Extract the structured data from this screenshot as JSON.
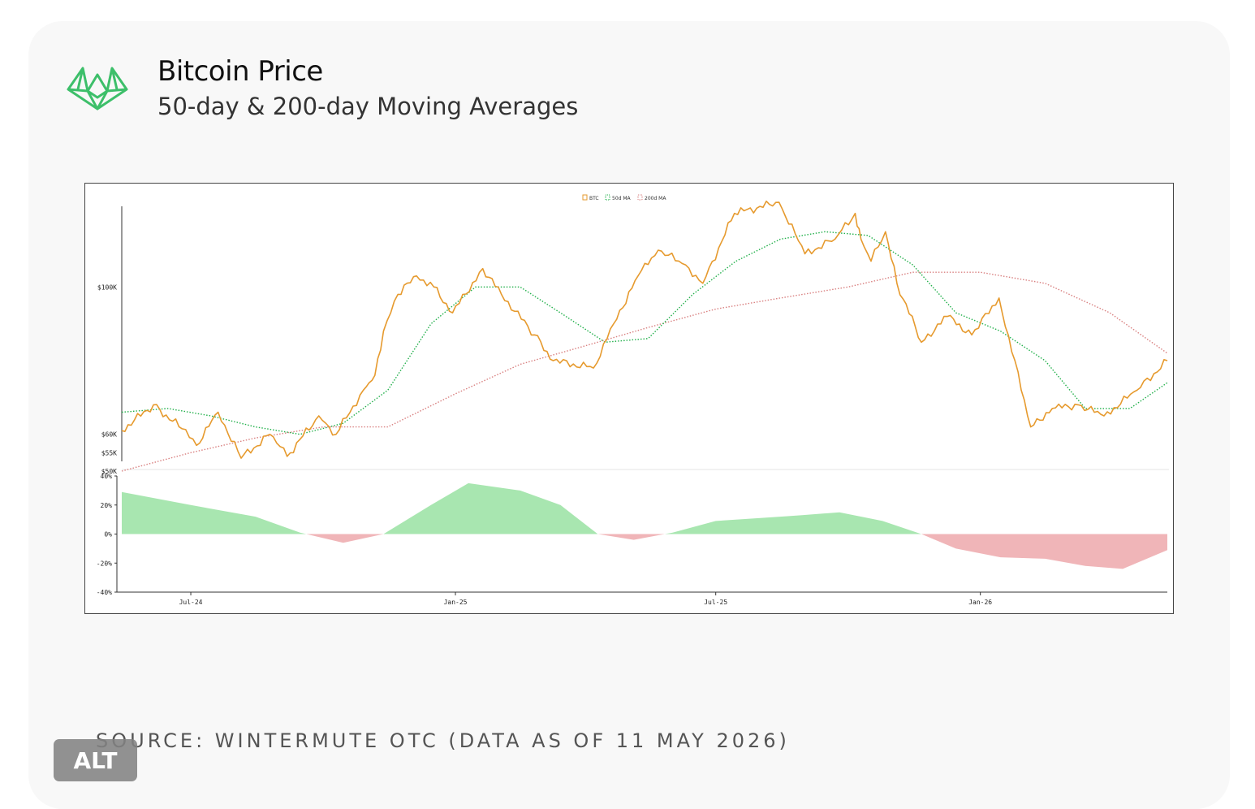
{
  "header": {
    "title": "Bitcoin Price",
    "subtitle": "50-day & 200-day Moving Averages",
    "logo_icon": "wintermute-logo-icon"
  },
  "footer": {
    "source": "SOURCE: WINTERMUTE OTC (DATA AS OF 11 MAY 2026)",
    "alt_label": "ALT"
  },
  "colors": {
    "btc": "#e69a2e",
    "ma50": "#22b04b",
    "ma200": "#d98080",
    "positive_fill": "#a8e6b0",
    "negative_fill": "#f0b5b8",
    "logo": "#3dbf6a"
  },
  "chart_data": [
    {
      "type": "line",
      "legend": [
        "BTC",
        "50d MA",
        "200d MA"
      ],
      "legend_position": "top-center",
      "x_ticks": [
        "Jul-24",
        "Jan-25",
        "Jul-25",
        "Jan-26"
      ],
      "y_ticks": [
        {
          "label": "$100K",
          "value": 100000
        },
        {
          "label": "$60K",
          "value": 60000
        },
        {
          "label": "$55K",
          "value": 55000
        },
        {
          "label": "$50K",
          "value": 50000
        }
      ],
      "ylim": [
        50000,
        125000
      ],
      "x_range": [
        "2024-05-14",
        "2026-05-11"
      ],
      "grid": false,
      "series": [
        {
          "name": "BTC",
          "x": [
            "2024-05-14",
            "2024-06-05",
            "2024-06-25",
            "2024-07-05",
            "2024-07-20",
            "2024-08-05",
            "2024-08-25",
            "2024-09-06",
            "2024-09-28",
            "2024-10-10",
            "2024-10-29",
            "2024-11-06",
            "2024-11-12",
            "2024-11-22",
            "2024-12-05",
            "2024-12-17",
            "2024-12-30",
            "2025-01-20",
            "2025-02-02",
            "2025-02-25",
            "2025-03-10",
            "2025-04-07",
            "2025-04-21",
            "2025-05-08",
            "2025-05-22",
            "2025-06-10",
            "2025-06-22",
            "2025-07-14",
            "2025-08-14",
            "2025-09-01",
            "2025-09-22",
            "2025-10-06",
            "2025-10-10",
            "2025-10-17",
            "2025-10-27",
            "2025-11-04",
            "2025-11-21",
            "2025-12-09",
            "2025-12-26",
            "2026-01-14",
            "2026-02-05",
            "2026-02-20",
            "2026-03-10",
            "2026-03-28",
            "2026-04-20",
            "2026-05-11"
          ],
          "values": [
            61000,
            68000,
            61500,
            57000,
            66000,
            53500,
            60000,
            54000,
            65000,
            60000,
            72000,
            76000,
            88000,
            98000,
            103000,
            100000,
            93000,
            105000,
            98000,
            87000,
            80000,
            78000,
            90000,
            103000,
            110000,
            106000,
            101000,
            120000,
            123000,
            109000,
            113000,
            120000,
            113000,
            107000,
            115000,
            101000,
            85000,
            92000,
            87000,
            97000,
            62000,
            67000,
            68000,
            65000,
            72000,
            80000
          ]
        },
        {
          "name": "50d MA",
          "x": [
            "2024-05-14",
            "2024-06-15",
            "2024-07-15",
            "2024-08-15",
            "2024-09-15",
            "2024-10-15",
            "2024-11-15",
            "2024-12-15",
            "2025-01-15",
            "2025-02-15",
            "2025-03-15",
            "2025-04-15",
            "2025-05-15",
            "2025-06-15",
            "2025-07-15",
            "2025-08-15",
            "2025-09-15",
            "2025-10-15",
            "2025-11-15",
            "2025-12-15",
            "2026-01-15",
            "2026-02-15",
            "2026-03-15",
            "2026-04-15",
            "2026-05-11"
          ],
          "values": [
            66000,
            67000,
            65000,
            62000,
            60000,
            63000,
            72000,
            90000,
            100000,
            100000,
            93000,
            85000,
            86000,
            98000,
            107000,
            113000,
            115000,
            114000,
            106000,
            93000,
            88000,
            80000,
            67000,
            67000,
            74000
          ]
        },
        {
          "name": "200d MA",
          "x": [
            "2024-05-14",
            "2024-07-01",
            "2024-08-15",
            "2024-10-01",
            "2024-11-15",
            "2025-01-01",
            "2025-02-15",
            "2025-04-01",
            "2025-05-15",
            "2025-07-01",
            "2025-08-15",
            "2025-10-01",
            "2025-11-15",
            "2026-01-01",
            "2026-02-15",
            "2026-04-01",
            "2026-05-11"
          ],
          "values": [
            50000,
            55000,
            59000,
            62000,
            62000,
            71000,
            79000,
            84000,
            89000,
            94000,
            97000,
            100000,
            104000,
            104000,
            101000,
            93000,
            82000
          ]
        }
      ]
    },
    {
      "type": "area",
      "ylabel": "",
      "y_ticks": [
        "40%",
        "20%",
        "0%",
        "-20%",
        "-40%"
      ],
      "ylim": [
        -40,
        40
      ],
      "x_ticks": [
        "Jul-24",
        "Jan-25",
        "Jul-25",
        "Jan-26"
      ],
      "series": [
        {
          "name": "",
          "x": [
            "2024-05-14",
            "2024-07-01",
            "2024-08-15",
            "2024-09-15",
            "2024-10-15",
            "2024-11-12",
            "2024-12-15",
            "2025-01-10",
            "2025-02-15",
            "2025-03-15",
            "2025-04-10",
            "2025-05-05",
            "2025-06-01",
            "2025-07-01",
            "2025-08-01",
            "2025-08-30",
            "2025-09-25",
            "2025-10-25",
            "2025-11-21",
            "2025-12-15",
            "2026-01-15",
            "2026-02-15",
            "2026-03-15",
            "2026-04-10",
            "2026-05-11"
          ],
          "values": [
            29,
            20,
            12,
            1,
            -6,
            0,
            20,
            35,
            30,
            20,
            0,
            -4,
            1,
            9,
            11,
            13,
            15,
            9,
            0,
            -10,
            -16,
            -17,
            -22,
            -24,
            -11
          ]
        }
      ]
    }
  ]
}
